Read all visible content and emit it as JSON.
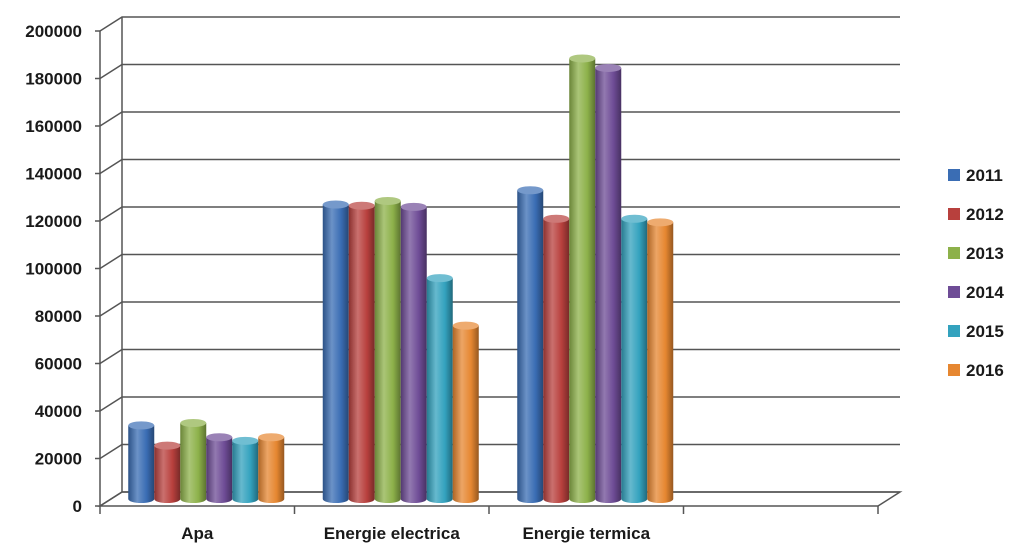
{
  "chart_data": {
    "type": "bar",
    "title": "",
    "xlabel": "",
    "ylabel": "",
    "ylim": [
      0,
      200000
    ],
    "yticks": [
      0,
      20000,
      40000,
      60000,
      80000,
      100000,
      120000,
      140000,
      160000,
      180000,
      200000
    ],
    "categories": [
      "Apa",
      "Energie electrica",
      "Energie termica",
      ""
    ],
    "grid": true,
    "legend_position": "right",
    "series": [
      {
        "name": "2011",
        "color": "#3a6db4",
        "values": [
          31000,
          124000,
          130000,
          null
        ]
      },
      {
        "name": "2012",
        "color": "#b8403d",
        "values": [
          22500,
          123500,
          118000,
          null
        ]
      },
      {
        "name": "2013",
        "color": "#8db14a",
        "values": [
          32000,
          125500,
          185500,
          null
        ]
      },
      {
        "name": "2014",
        "color": "#6e4c96",
        "values": [
          26000,
          123000,
          181500,
          null
        ]
      },
      {
        "name": "2015",
        "color": "#33a2be",
        "values": [
          24500,
          93000,
          118000,
          null
        ]
      },
      {
        "name": "2016",
        "color": "#e68731",
        "values": [
          26000,
          73000,
          116500,
          null
        ]
      }
    ]
  }
}
